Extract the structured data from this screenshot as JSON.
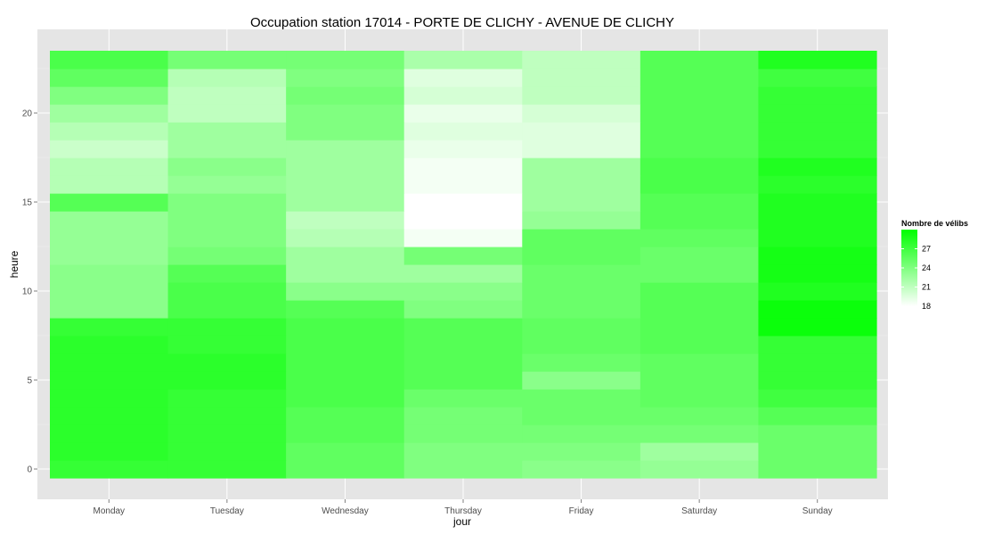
{
  "chart_data": {
    "type": "heatmap",
    "title": "Occupation station 17014 - PORTE DE CLICHY - AVENUE DE CLICHY",
    "xlabel": "jour",
    "ylabel": "heure",
    "categories": [
      "Monday",
      "Tuesday",
      "Wednesday",
      "Thursday",
      "Friday",
      "Saturday",
      "Sunday"
    ],
    "y": [
      0,
      1,
      2,
      3,
      4,
      5,
      6,
      7,
      8,
      9,
      10,
      11,
      12,
      13,
      14,
      15,
      16,
      17,
      18,
      19,
      20,
      21,
      22,
      23
    ],
    "y_ticks": [
      0,
      5,
      10,
      15,
      20
    ],
    "ylim": [
      -0.5,
      23.5
    ],
    "values": [
      [
        27.5,
        27.5,
        25.5,
        24.0,
        23.5,
        23.0,
        25.0
      ],
      [
        28.0,
        27.5,
        25.5,
        24.0,
        24.0,
        22.5,
        25.0
      ],
      [
        28.0,
        27.5,
        26.0,
        24.5,
        24.5,
        24.5,
        25.0
      ],
      [
        28.0,
        27.5,
        26.0,
        24.5,
        25.0,
        25.0,
        26.0
      ],
      [
        28.0,
        27.5,
        26.5,
        25.0,
        25.0,
        25.5,
        27.0
      ],
      [
        28.0,
        28.0,
        26.5,
        26.0,
        23.5,
        25.5,
        27.5
      ],
      [
        28.0,
        28.0,
        26.5,
        26.0,
        25.0,
        25.5,
        27.5
      ],
      [
        28.0,
        27.5,
        26.5,
        26.0,
        25.5,
        26.0,
        27.5
      ],
      [
        27.5,
        27.5,
        26.5,
        26.0,
        25.5,
        26.0,
        29.5
      ],
      [
        23.5,
        26.5,
        26.0,
        24.0,
        25.0,
        26.0,
        29.5
      ],
      [
        23.5,
        26.5,
        23.5,
        23.5,
        25.0,
        26.0,
        28.5
      ],
      [
        23.5,
        26.0,
        22.5,
        22.5,
        25.0,
        25.0,
        29.0
      ],
      [
        23.0,
        24.5,
        22.5,
        24.5,
        25.5,
        25.0,
        29.0
      ],
      [
        23.0,
        24.0,
        21.5,
        18.5,
        25.5,
        25.5,
        28.5
      ],
      [
        23.0,
        24.0,
        21.0,
        18.0,
        23.0,
        26.0,
        28.5
      ],
      [
        26.0,
        24.0,
        22.5,
        18.0,
        22.5,
        26.0,
        28.5
      ],
      [
        21.5,
        23.0,
        22.5,
        18.5,
        22.5,
        26.5,
        28.0
      ],
      [
        21.5,
        23.5,
        22.5,
        18.5,
        22.5,
        26.5,
        28.5
      ],
      [
        20.5,
        22.5,
        22.5,
        19.0,
        19.5,
        26.0,
        27.5
      ],
      [
        21.5,
        22.5,
        24.0,
        19.5,
        19.5,
        26.0,
        27.5
      ],
      [
        22.5,
        21.0,
        24.0,
        19.0,
        20.0,
        26.0,
        27.5
      ],
      [
        24.0,
        21.0,
        24.5,
        20.0,
        21.0,
        26.0,
        27.5
      ],
      [
        25.5,
        21.5,
        24.0,
        19.5,
        21.0,
        26.0,
        27.0
      ],
      [
        26.5,
        24.5,
        24.5,
        22.0,
        21.0,
        26.0,
        28.5
      ]
    ],
    "legend": {
      "title": "Nombre de vélibs",
      "placement": "right",
      "ticks": [
        18,
        21,
        24,
        27
      ],
      "range": [
        18,
        30
      ]
    },
    "colors": {
      "low": "#ffffff",
      "high": "#00ff00",
      "panel": "#e5e5e5",
      "grid": "#ffffff"
    },
    "grid": true
  }
}
